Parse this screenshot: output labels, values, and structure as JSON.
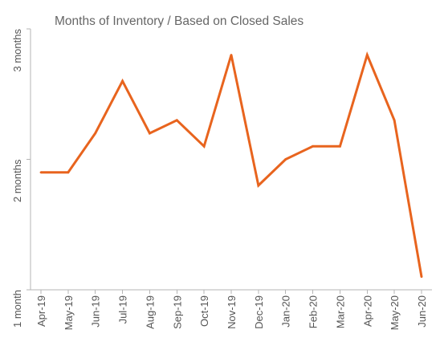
{
  "chart_data": {
    "type": "line",
    "title": "Months of Inventory / Based on Closed Sales",
    "xlabel": "",
    "ylabel": "",
    "categories": [
      "Apr-19",
      "May-19",
      "Jun-19",
      "Jul-19",
      "Aug-19",
      "Sep-19",
      "Oct-19",
      "Nov-19",
      "Dec-19",
      "Jan-20",
      "Feb-20",
      "Mar-20",
      "Apr-20",
      "May-20",
      "Jun-20"
    ],
    "series": [
      {
        "values": [
          1.9,
          1.9,
          2.2,
          2.6,
          2.2,
          2.3,
          2.1,
          2.8,
          1.8,
          2.0,
          2.1,
          2.1,
          2.8,
          2.3,
          1.1
        ]
      }
    ],
    "ylim": [
      1,
      3
    ],
    "yticks": [
      {
        "value": 1,
        "label": "1 month"
      },
      {
        "value": 2,
        "label": "2 months"
      },
      {
        "value": 3,
        "label": "3 months"
      }
    ],
    "grid": false,
    "legend": "none",
    "line_color": "#e8641e"
  }
}
